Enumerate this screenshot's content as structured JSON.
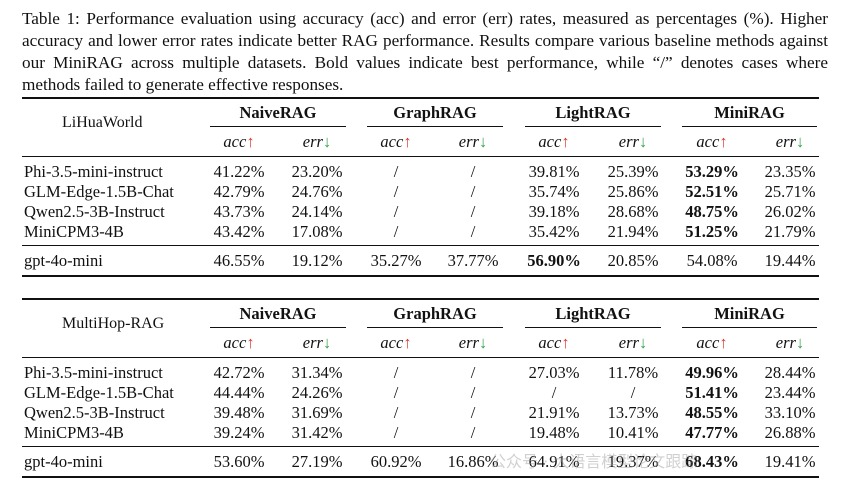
{
  "caption": "Table 1: Performance evaluation using accuracy (acc) and error (err) rates, measured as percentages (%). Higher accuracy and lower error rates indicate better RAG performance. Results compare various baseline methods against our MiniRAG across multiple datasets. Bold values indicate best performance, while “/” denotes cases where methods failed to generate effective responses.",
  "methods": [
    "NaiveRAG",
    "GraphRAG",
    "LightRAG",
    "MiniRAG"
  ],
  "sub_acc": "acc",
  "sub_err": "err",
  "arrow_up": "↑",
  "arrow_down": "↓",
  "colors": {
    "up": "#d83a2e",
    "down": "#37a04a"
  },
  "tables": [
    {
      "dataset": "LiHuaWorld",
      "rows": [
        {
          "model": "Phi-3.5-mini-instruct",
          "values": [
            "41.22%",
            "23.20%",
            "/",
            "/",
            "39.81%",
            "25.39%",
            "53.29%",
            "23.35%"
          ],
          "bold": [
            6
          ]
        },
        {
          "model": "GLM-Edge-1.5B-Chat",
          "values": [
            "42.79%",
            "24.76%",
            "/",
            "/",
            "35.74%",
            "25.86%",
            "52.51%",
            "25.71%"
          ],
          "bold": [
            6
          ]
        },
        {
          "model": "Qwen2.5-3B-Instruct",
          "values": [
            "43.73%",
            "24.14%",
            "/",
            "/",
            "39.18%",
            "28.68%",
            "48.75%",
            "26.02%"
          ],
          "bold": [
            6
          ]
        },
        {
          "model": "MiniCPM3-4B",
          "values": [
            "43.42%",
            "17.08%",
            "/",
            "/",
            "35.42%",
            "21.94%",
            "51.25%",
            "21.79%"
          ],
          "bold": [
            6
          ]
        }
      ],
      "ref": {
        "model": "gpt-4o-mini",
        "values": [
          "46.55%",
          "19.12%",
          "35.27%",
          "37.77%",
          "56.90%",
          "20.85%",
          "54.08%",
          "19.44%"
        ],
        "bold": [
          4
        ]
      }
    },
    {
      "dataset": "MultiHop-RAG",
      "rows": [
        {
          "model": "Phi-3.5-mini-instruct",
          "values": [
            "42.72%",
            "31.34%",
            "/",
            "/",
            "27.03%",
            "11.78%",
            "49.96%",
            "28.44%"
          ],
          "bold": [
            6
          ]
        },
        {
          "model": "GLM-Edge-1.5B-Chat",
          "values": [
            "44.44%",
            "24.26%",
            "/",
            "/",
            "/",
            "/",
            "51.41%",
            "23.44%"
          ],
          "bold": [
            6
          ]
        },
        {
          "model": "Qwen2.5-3B-Instruct",
          "values": [
            "39.48%",
            "31.69%",
            "/",
            "/",
            "21.91%",
            "13.73%",
            "48.55%",
            "33.10%"
          ],
          "bold": [
            6
          ]
        },
        {
          "model": "MiniCPM3-4B",
          "values": [
            "39.24%",
            "31.42%",
            "/",
            "/",
            "19.48%",
            "10.41%",
            "47.77%",
            "26.88%"
          ],
          "bold": [
            6
          ]
        }
      ],
      "ref": {
        "model": "gpt-4o-mini",
        "values": [
          "53.60%",
          "27.19%",
          "60.92%",
          "16.86%",
          "64.91%",
          "19.37%",
          "68.43%",
          "19.41%"
        ],
        "bold": [
          6
        ]
      }
    }
  ],
  "watermark": "公众号 · 大语言模型论文跟踪"
}
